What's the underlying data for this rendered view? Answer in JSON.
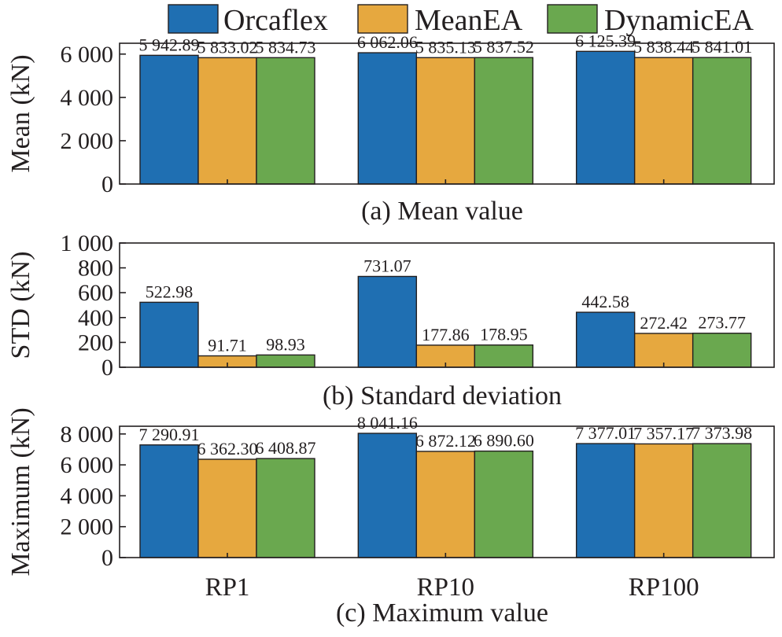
{
  "colors": {
    "Orcaflex": "#1f6fb2",
    "MeanEA": "#e6a83f",
    "DynamicEA": "#6aa84f"
  },
  "legend": [
    "Orcaflex",
    "MeanEA",
    "DynamicEA"
  ],
  "chart_data": [
    {
      "type": "bar",
      "caption": "(a) Mean value",
      "ylabel": "Mean (kN)",
      "categories": [
        "RP1",
        "RP10",
        "RP100"
      ],
      "ylim": [
        0,
        6500
      ],
      "yticks": [
        0,
        2000,
        4000,
        6000
      ],
      "ytick_labels": [
        "0",
        "2 000",
        "4 000",
        "6 000"
      ],
      "series": [
        {
          "name": "Orcaflex",
          "values": [
            5942.89,
            6062.06,
            6125.39
          ],
          "labels": [
            "5 942.89",
            "6 062.06",
            "6 125.39"
          ]
        },
        {
          "name": "MeanEA",
          "values": [
            5833.02,
            5835.13,
            5838.44
          ],
          "labels": [
            "5 833.02",
            "5 835.13",
            "5 838.44"
          ]
        },
        {
          "name": "DynamicEA",
          "values": [
            5834.73,
            5837.52,
            5841.01
          ],
          "labels": [
            "5 834.73",
            "5 837.52",
            "5 841.01"
          ]
        }
      ]
    },
    {
      "type": "bar",
      "caption": "(b) Standard deviation",
      "ylabel": "STD (kN)",
      "categories": [
        "RP1",
        "RP10",
        "RP100"
      ],
      "ylim": [
        0,
        1000
      ],
      "yticks": [
        0,
        200,
        400,
        600,
        800,
        1000
      ],
      "ytick_labels": [
        "0",
        "200",
        "400",
        "600",
        "800",
        "1 000"
      ],
      "series": [
        {
          "name": "Orcaflex",
          "values": [
            522.98,
            731.07,
            442.58
          ],
          "labels": [
            "522.98",
            "731.07",
            "442.58"
          ]
        },
        {
          "name": "MeanEA",
          "values": [
            91.71,
            177.86,
            272.42
          ],
          "labels": [
            "91.71",
            "177.86",
            "272.42"
          ]
        },
        {
          "name": "DynamicEA",
          "values": [
            98.93,
            178.95,
            273.77
          ],
          "labels": [
            "98.93",
            "178.95",
            "273.77"
          ]
        }
      ]
    },
    {
      "type": "bar",
      "caption": "(c) Maximum value",
      "ylabel": "Maximum (kN)",
      "categories": [
        "RP1",
        "RP10",
        "RP100"
      ],
      "ylim": [
        0,
        8500
      ],
      "yticks": [
        0,
        2000,
        4000,
        6000,
        8000
      ],
      "ytick_labels": [
        "0",
        "2 000",
        "4 000",
        "6 000",
        "8 000"
      ],
      "series": [
        {
          "name": "Orcaflex",
          "values": [
            7290.91,
            8041.16,
            7377.01
          ],
          "labels": [
            "7 290.91",
            "8 041.16",
            "7 377.01"
          ]
        },
        {
          "name": "MeanEA",
          "values": [
            6362.3,
            6872.12,
            7357.17
          ],
          "labels": [
            "6 362.30",
            "6 872.12",
            "7 357.17"
          ]
        },
        {
          "name": "DynamicEA",
          "values": [
            6408.87,
            6890.6,
            7373.98
          ],
          "labels": [
            "6 408.87",
            "6 890.60",
            "7 373.98"
          ]
        }
      ]
    }
  ]
}
